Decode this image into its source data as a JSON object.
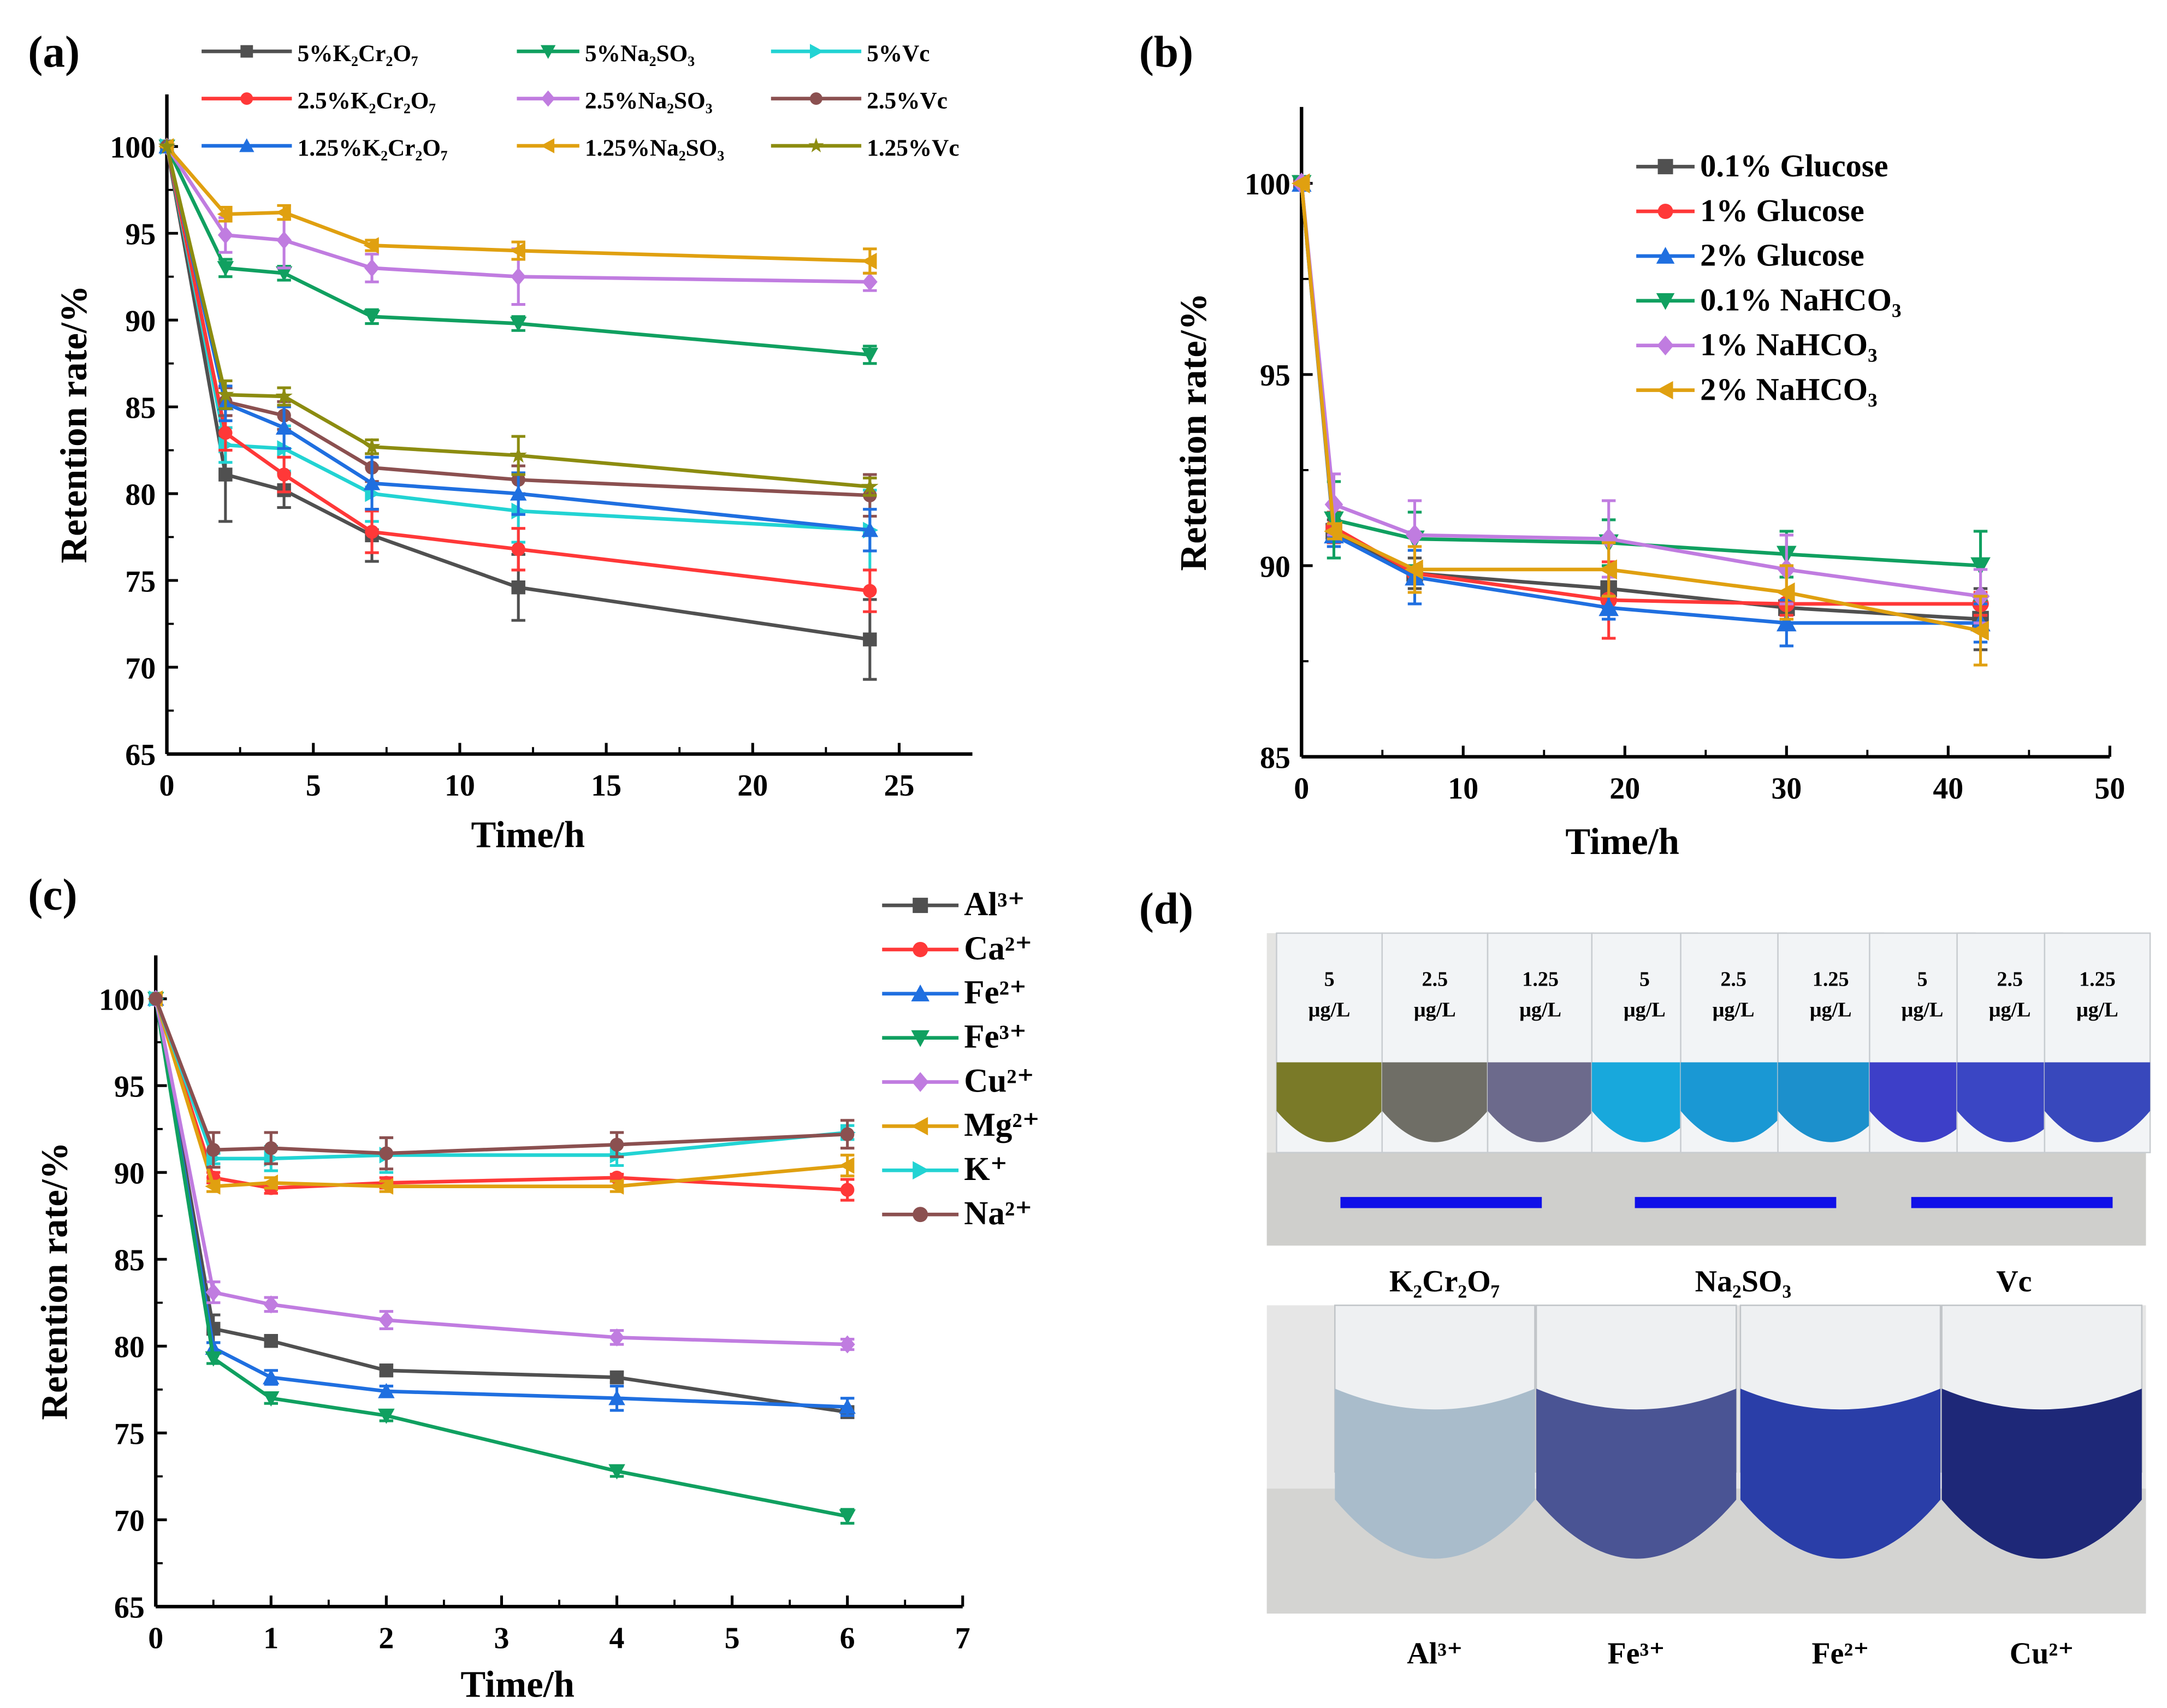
{
  "chart_data": [
    {
      "id": "a",
      "panel": "(a)",
      "type": "line",
      "xlabel": "Time/h",
      "ylabel": "Retention rate/%",
      "xlim": [
        0,
        27.5
      ],
      "ylim": [
        65,
        103
      ],
      "xticks": [
        0,
        5,
        10,
        15,
        20,
        25
      ],
      "yticks": [
        65,
        70,
        75,
        80,
        85,
        90,
        95,
        100
      ],
      "legend": "top, 3 columns",
      "x": [
        0,
        2,
        4,
        7,
        12,
        24
      ],
      "series": [
        {
          "name": "5%K₂Cr₂O₇",
          "color": "#505050",
          "marker": "square",
          "values": [
            100,
            81.1,
            80.2,
            77.6,
            74.6,
            71.6
          ],
          "err": [
            0,
            2.7,
            1.0,
            1.5,
            1.9,
            2.3
          ]
        },
        {
          "name": "5%Na₂SO₃",
          "color": "#10a060",
          "marker": "tri-down",
          "values": [
            100,
            93.0,
            92.7,
            90.2,
            89.8,
            88.0
          ],
          "err": [
            0,
            0.5,
            0.4,
            0.4,
            0.4,
            0.5
          ]
        },
        {
          "name": "5%Vc",
          "color": "#22d3d3",
          "marker": "tri-right",
          "values": [
            100,
            82.8,
            82.6,
            80.0,
            79.0,
            77.9
          ],
          "err": [
            0,
            1.0,
            1.3,
            1.6,
            1.8,
            2.3
          ]
        },
        {
          "name": "2.5%K₂Cr₂O₇",
          "color": "#ff3838",
          "marker": "circle",
          "values": [
            100,
            83.5,
            81.1,
            77.8,
            76.8,
            74.4
          ],
          "err": [
            0,
            1.0,
            1.0,
            1.2,
            1.2,
            1.2
          ]
        },
        {
          "name": "2.5%Na₂SO₃",
          "color": "#c07ce0",
          "marker": "diamond",
          "values": [
            100,
            94.9,
            94.6,
            93.0,
            92.5,
            92.2
          ],
          "err": [
            0,
            1.0,
            1.6,
            0.8,
            1.6,
            0.5
          ]
        },
        {
          "name": "2.5%Vc",
          "color": "#8b5050",
          "marker": "circle",
          "values": [
            100,
            85.3,
            84.5,
            81.5,
            80.8,
            79.9
          ],
          "err": [
            0,
            0.8,
            0.8,
            0.8,
            0.8,
            1.2
          ]
        },
        {
          "name": "1.25%K₂Cr₂O₇",
          "color": "#1f6fe0",
          "marker": "tri-up",
          "values": [
            100,
            85.2,
            83.8,
            80.6,
            80.0,
            77.9
          ],
          "err": [
            0,
            1.0,
            1.2,
            1.5,
            1.2,
            1.2
          ]
        },
        {
          "name": "1.25%Na₂SO₃",
          "color": "#e0a010",
          "marker": "tri-left",
          "values": [
            100,
            96.1,
            96.2,
            94.3,
            94.0,
            93.4
          ],
          "err": [
            0,
            0.4,
            0.4,
            0.3,
            0.5,
            0.7
          ]
        },
        {
          "name": "1.25%Vc",
          "color": "#8c8c10",
          "marker": "star",
          "values": [
            100,
            85.7,
            85.6,
            82.7,
            82.2,
            80.4
          ],
          "err": [
            0,
            0.8,
            0.5,
            0.4,
            1.1,
            0.5
          ]
        }
      ]
    },
    {
      "id": "b",
      "panel": "(b)",
      "type": "line",
      "xlabel": "Time/h",
      "ylabel": "Retention rate/%",
      "xlim": [
        0,
        50
      ],
      "ylim": [
        85,
        102
      ],
      "xticks": [
        0,
        10,
        20,
        30,
        40,
        50
      ],
      "yticks": [
        85,
        90,
        95,
        100
      ],
      "legend": "top-right",
      "x": [
        0,
        2,
        7,
        19,
        30,
        42
      ],
      "series": [
        {
          "name": "0.1% Glucose",
          "color": "#505050",
          "marker": "square",
          "values": [
            100,
            90.9,
            89.8,
            89.4,
            88.9,
            88.6
          ],
          "err": [
            0,
            0.3,
            0.4,
            0.5,
            0.4,
            0.8
          ]
        },
        {
          "name": "1% Glucose",
          "color": "#ff3838",
          "marker": "circle",
          "values": [
            100,
            91.0,
            89.8,
            89.1,
            89.0,
            89.0
          ],
          "err": [
            0,
            0.4,
            0.2,
            1.0,
            0.3,
            0.3
          ]
        },
        {
          "name": "2% Glucose",
          "color": "#1f6fe0",
          "marker": "tri-up",
          "values": [
            100,
            90.8,
            89.7,
            88.9,
            88.5,
            88.5
          ],
          "err": [
            0,
            0.3,
            0.7,
            0.3,
            0.6,
            0.5
          ]
        },
        {
          "name": "0.1% NaHCO₃",
          "color": "#10a060",
          "marker": "tri-down",
          "values": [
            100,
            91.2,
            90.7,
            90.6,
            90.3,
            90.0
          ],
          "err": [
            0,
            1.0,
            0.7,
            0.6,
            0.6,
            0.9
          ]
        },
        {
          "name": "1% NaHCO₃",
          "color": "#c07ce0",
          "marker": "diamond",
          "values": [
            100,
            91.6,
            90.8,
            90.7,
            89.9,
            89.2
          ],
          "err": [
            0,
            0.8,
            0.9,
            1.0,
            0.9,
            0.7
          ]
        },
        {
          "name": "2% NaHCO₃",
          "color": "#e0a010",
          "marker": "tri-left",
          "values": [
            100,
            90.9,
            89.9,
            89.9,
            89.3,
            88.3
          ],
          "err": [
            0,
            0.2,
            0.6,
            0.7,
            0.7,
            0.9
          ]
        }
      ]
    },
    {
      "id": "c",
      "panel": "(c)",
      "type": "line",
      "xlabel": "Time/h",
      "ylabel": "Retention rate/%",
      "xlim": [
        0,
        7
      ],
      "ylim": [
        65,
        102.5
      ],
      "xticks": [
        0,
        1,
        2,
        3,
        4,
        5,
        6,
        7
      ],
      "yticks": [
        65,
        70,
        75,
        80,
        85,
        90,
        95,
        100
      ],
      "legend": "right",
      "x": [
        0,
        0.5,
        1,
        2,
        4,
        6
      ],
      "series": [
        {
          "name": "Al³⁺",
          "color": "#505050",
          "marker": "square",
          "values": [
            100,
            81.0,
            80.3,
            78.6,
            78.2,
            76.2
          ],
          "err": [
            0,
            0.8,
            0.3,
            0.3,
            0.3,
            0.3
          ]
        },
        {
          "name": "Ca²⁺",
          "color": "#ff3838",
          "marker": "circle",
          "values": [
            100,
            89.7,
            89.1,
            89.4,
            89.7,
            89.0
          ],
          "err": [
            0,
            0.3,
            0.3,
            0.3,
            0.2,
            0.6
          ]
        },
        {
          "name": "Fe²⁺",
          "color": "#1f6fe0",
          "marker": "tri-up",
          "values": [
            100,
            79.9,
            78.2,
            77.4,
            77.0,
            76.5
          ],
          "err": [
            0,
            0.3,
            0.4,
            0.3,
            0.7,
            0.5
          ]
        },
        {
          "name": "Fe³⁺",
          "color": "#10a060",
          "marker": "tri-down",
          "values": [
            100,
            79.3,
            77.0,
            76.0,
            72.8,
            70.2
          ],
          "err": [
            0,
            0.3,
            0.3,
            0.3,
            0.3,
            0.4
          ]
        },
        {
          "name": "Cu²⁺",
          "color": "#c07ce0",
          "marker": "diamond",
          "values": [
            100,
            83.1,
            82.4,
            81.5,
            80.5,
            80.1
          ],
          "err": [
            0,
            0.6,
            0.4,
            0.5,
            0.4,
            0.3
          ]
        },
        {
          "name": "Mg²⁺",
          "color": "#e0a010",
          "marker": "tri-left",
          "values": [
            100,
            89.2,
            89.4,
            89.2,
            89.2,
            90.4
          ],
          "err": [
            0,
            0.3,
            0.3,
            0.3,
            0.3,
            0.6
          ]
        },
        {
          "name": "K⁺",
          "color": "#22d3d3",
          "marker": "tri-right",
          "values": [
            100,
            90.8,
            90.8,
            91.0,
            91.0,
            92.3
          ],
          "err": [
            0,
            0.3,
            0.7,
            1.0,
            0.6,
            0.4
          ]
        },
        {
          "name": "Na²⁺",
          "color": "#8b5050",
          "marker": "circle",
          "values": [
            100,
            91.3,
            91.4,
            91.1,
            91.6,
            92.2
          ],
          "err": [
            0,
            1.0,
            0.9,
            0.9,
            0.7,
            0.8
          ]
        }
      ]
    }
  ],
  "photo_panel": {
    "panel": "(d)",
    "top_tubes": [
      {
        "conc": "5",
        "unit": "μg/L",
        "color": "#7a7a28"
      },
      {
        "conc": "2.5",
        "unit": "μg/L",
        "color": "#6f6e66"
      },
      {
        "conc": "1.25",
        "unit": "μg/L",
        "color": "#6c6a8c"
      },
      {
        "conc": "5",
        "unit": "μg/L",
        "color": "#18a8dc"
      },
      {
        "conc": "2.5",
        "unit": "μg/L",
        "color": "#1a98d4"
      },
      {
        "conc": "1.25",
        "unit": "μg/L",
        "color": "#1c90cc"
      },
      {
        "conc": "5",
        "unit": "μg/L",
        "color": "#3d3fc8"
      },
      {
        "conc": "2.5",
        "unit": "μg/L",
        "color": "#3a46c4"
      },
      {
        "conc": "1.25",
        "unit": "μg/L",
        "color": "#3848bc"
      }
    ],
    "groups": [
      "K₂Cr₂O₇",
      "Na₂SO₃",
      "Vc"
    ],
    "bar_color": "#1010e8",
    "bottom_tubes": [
      {
        "label": "Al³⁺",
        "color": "#a9bccb"
      },
      {
        "label": "Fe³⁺",
        "color": "#4a5494"
      },
      {
        "label": "Fe²⁺",
        "color": "#2a3ea8"
      },
      {
        "label": "Cu²⁺",
        "color": "#1e2878"
      }
    ]
  }
}
